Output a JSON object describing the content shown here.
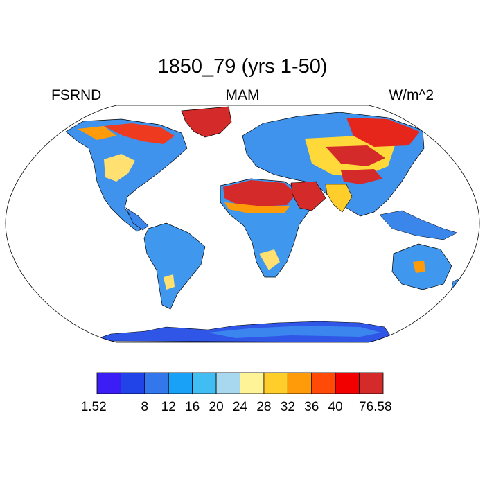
{
  "figure": {
    "title": "1850_79 (yrs 1-50)",
    "left_label": "FSRND",
    "center_label": "MAM",
    "right_label": "W/m^2"
  },
  "colorbar": {
    "colors": [
      "#3b1ef5",
      "#2144e8",
      "#3277ec",
      "#19a1f7",
      "#40bdf2",
      "#a8d8f0",
      "#fff397",
      "#ffce2a",
      "#ff9a08",
      "#ff4a08",
      "#f20000",
      "#d42a2a"
    ],
    "labels": [
      "1.52",
      "8",
      "12",
      "16",
      "20",
      "24",
      "28",
      "32",
      "36",
      "40",
      "76.58"
    ]
  },
  "legend_colors": {
    "ocean": "#ffffff",
    "outline": "#000000"
  }
}
